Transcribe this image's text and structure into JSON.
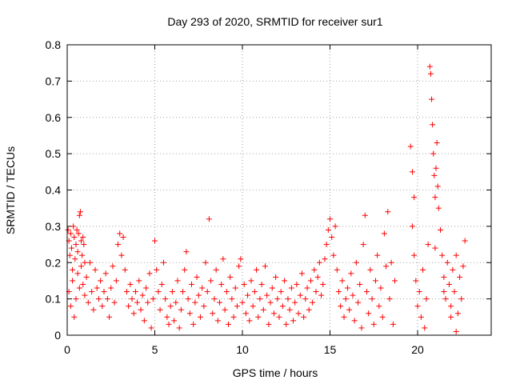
{
  "chart_data": {
    "type": "scatter",
    "title": "Day 293 of 2020, SRMTID for receiver sur1",
    "xlabel": "GPS time / hours",
    "ylabel": "SRMTID / TECUs",
    "xlim": [
      0,
      24.2
    ],
    "ylim": [
      0,
      0.8
    ],
    "xticks": [
      0,
      5,
      10,
      15,
      20
    ],
    "yticks": [
      0,
      0.1,
      0.2,
      0.3,
      0.4,
      0.5,
      0.6,
      0.7,
      0.8
    ],
    "xtick_labels": [
      "0",
      "5",
      "10",
      "15",
      "20"
    ],
    "ytick_labels": [
      "0",
      "0.1",
      "0.2",
      "0.3",
      "0.4",
      "0.5",
      "0.6",
      "0.7",
      "0.8"
    ],
    "grid": true,
    "marker": "+",
    "marker_color": "#ff0000",
    "series": [
      {
        "name": "SRMTID",
        "points": [
          [
            0.05,
            0.29
          ],
          [
            0.1,
            0.26
          ],
          [
            0.15,
            0.22
          ],
          [
            0.2,
            0.28
          ],
          [
            0.25,
            0.24
          ],
          [
            0.3,
            0.18
          ],
          [
            0.35,
            0.3
          ],
          [
            0.4,
            0.27
          ],
          [
            0.45,
            0.21
          ],
          [
            0.5,
            0.25
          ],
          [
            0.55,
            0.29
          ],
          [
            0.6,
            0.23
          ],
          [
            0.65,
            0.28
          ],
          [
            0.7,
            0.33
          ],
          [
            0.75,
            0.34
          ],
          [
            0.8,
            0.26
          ],
          [
            0.85,
            0.22
          ],
          [
            0.9,
            0.27
          ],
          [
            0.95,
            0.25
          ],
          [
            1.0,
            0.2
          ],
          [
            0.1,
            0.12
          ],
          [
            0.2,
            0.08
          ],
          [
            0.3,
            0.15
          ],
          [
            0.4,
            0.05
          ],
          [
            0.5,
            0.1
          ],
          [
            0.6,
            0.17
          ],
          [
            0.7,
            0.13
          ],
          [
            0.8,
            0.19
          ],
          [
            0.9,
            0.14
          ],
          [
            1.0,
            0.11
          ],
          [
            1.1,
            0.16
          ],
          [
            1.2,
            0.09
          ],
          [
            1.3,
            0.2
          ],
          [
            1.4,
            0.12
          ],
          [
            1.5,
            0.07
          ],
          [
            1.6,
            0.18
          ],
          [
            1.7,
            0.13
          ],
          [
            1.8,
            0.1
          ],
          [
            1.9,
            0.15
          ],
          [
            2.0,
            0.08
          ],
          [
            2.1,
            0.12
          ],
          [
            2.2,
            0.17
          ],
          [
            2.3,
            0.1
          ],
          [
            2.4,
            0.05
          ],
          [
            2.5,
            0.13
          ],
          [
            2.6,
            0.19
          ],
          [
            2.7,
            0.09
          ],
          [
            2.8,
            0.15
          ],
          [
            2.9,
            0.25
          ],
          [
            3.0,
            0.28
          ],
          [
            3.1,
            0.22
          ],
          [
            3.2,
            0.27
          ],
          [
            3.3,
            0.18
          ],
          [
            3.4,
            0.12
          ],
          [
            3.5,
            0.08
          ],
          [
            3.6,
            0.14
          ],
          [
            3.7,
            0.1
          ],
          [
            3.8,
            0.06
          ],
          [
            3.9,
            0.12
          ],
          [
            4.0,
            0.09
          ],
          [
            4.1,
            0.15
          ],
          [
            4.2,
            0.07
          ],
          [
            4.3,
            0.11
          ],
          [
            4.4,
            0.04
          ],
          [
            4.5,
            0.13
          ],
          [
            4.6,
            0.09
          ],
          [
            4.7,
            0.17
          ],
          [
            4.8,
            0.02
          ],
          [
            4.9,
            0.1
          ],
          [
            5.0,
            0.26
          ],
          [
            5.1,
            0.18
          ],
          [
            5.2,
            0.12
          ],
          [
            5.3,
            0.07
          ],
          [
            5.4,
            0.14
          ],
          [
            5.5,
            0.2
          ],
          [
            5.6,
            0.1
          ],
          [
            5.7,
            0.05
          ],
          [
            5.8,
            0.03
          ],
          [
            5.9,
            0.08
          ],
          [
            6.0,
            0.12
          ],
          [
            6.1,
            0.04
          ],
          [
            6.2,
            0.09
          ],
          [
            6.3,
            0.15
          ],
          [
            6.4,
            0.02
          ],
          [
            6.5,
            0.07
          ],
          [
            6.6,
            0.12
          ],
          [
            6.7,
            0.18
          ],
          [
            6.8,
            0.23
          ],
          [
            6.9,
            0.1
          ],
          [
            7.0,
            0.06
          ],
          [
            7.1,
            0.14
          ],
          [
            7.2,
            0.03
          ],
          [
            7.3,
            0.09
          ],
          [
            7.4,
            0.16
          ],
          [
            7.5,
            0.11
          ],
          [
            7.6,
            0.05
          ],
          [
            7.7,
            0.13
          ],
          [
            7.8,
            0.08
          ],
          [
            7.9,
            0.2
          ],
          [
            8.0,
            0.12
          ],
          [
            8.1,
            0.32
          ],
          [
            8.2,
            0.15
          ],
          [
            8.3,
            0.06
          ],
          [
            8.4,
            0.1
          ],
          [
            8.5,
            0.18
          ],
          [
            8.6,
            0.04
          ],
          [
            8.7,
            0.09
          ],
          [
            8.8,
            0.14
          ],
          [
            8.9,
            0.21
          ],
          [
            9.0,
            0.07
          ],
          [
            9.1,
            0.12
          ],
          [
            9.2,
            0.03
          ],
          [
            9.3,
            0.16
          ],
          [
            9.4,
            0.1
          ],
          [
            9.5,
            0.05
          ],
          [
            9.6,
            0.13
          ],
          [
            9.7,
            0.08
          ],
          [
            9.8,
            0.19
          ],
          [
            9.9,
            0.21
          ],
          [
            10.0,
            0.09
          ],
          [
            10.1,
            0.14
          ],
          [
            10.2,
            0.06
          ],
          [
            10.3,
            0.11
          ],
          [
            10.4,
            0.04
          ],
          [
            10.5,
            0.15
          ],
          [
            10.6,
            0.08
          ],
          [
            10.7,
            0.12
          ],
          [
            10.8,
            0.18
          ],
          [
            10.9,
            0.05
          ],
          [
            11.0,
            0.1
          ],
          [
            11.1,
            0.14
          ],
          [
            11.2,
            0.07
          ],
          [
            11.3,
            0.19
          ],
          [
            11.4,
            0.11
          ],
          [
            11.5,
            0.03
          ],
          [
            11.6,
            0.09
          ],
          [
            11.7,
            0.13
          ],
          [
            11.8,
            0.06
          ],
          [
            11.9,
            0.16
          ],
          [
            12.0,
            0.1
          ],
          [
            12.1,
            0.05
          ],
          [
            12.2,
            0.12
          ],
          [
            12.3,
            0.08
          ],
          [
            12.4,
            0.15
          ],
          [
            12.5,
            0.03
          ],
          [
            12.6,
            0.1
          ],
          [
            12.7,
            0.07
          ],
          [
            12.8,
            0.13
          ],
          [
            12.9,
            0.04
          ],
          [
            13.0,
            0.09
          ],
          [
            13.1,
            0.14
          ],
          [
            13.2,
            0.06
          ],
          [
            13.3,
            0.11
          ],
          [
            13.4,
            0.17
          ],
          [
            13.5,
            0.05
          ],
          [
            13.6,
            0.1
          ],
          [
            13.7,
            0.13
          ],
          [
            13.8,
            0.07
          ],
          [
            13.9,
            0.15
          ],
          [
            14.0,
            0.09
          ],
          [
            14.1,
            0.18
          ],
          [
            14.2,
            0.12
          ],
          [
            14.3,
            0.16
          ],
          [
            14.4,
            0.2
          ],
          [
            14.5,
            0.11
          ],
          [
            14.6,
            0.14
          ],
          [
            14.7,
            0.21
          ],
          [
            14.8,
            0.25
          ],
          [
            14.9,
            0.29
          ],
          [
            15.0,
            0.32
          ],
          [
            15.1,
            0.27
          ],
          [
            15.2,
            0.22
          ],
          [
            15.3,
            0.3
          ],
          [
            15.4,
            0.18
          ],
          [
            15.5,
            0.12
          ],
          [
            15.6,
            0.08
          ],
          [
            15.7,
            0.15
          ],
          [
            15.8,
            0.05
          ],
          [
            15.9,
            0.1
          ],
          [
            16.0,
            0.13
          ],
          [
            16.1,
            0.07
          ],
          [
            16.2,
            0.17
          ],
          [
            16.3,
            0.11
          ],
          [
            16.4,
            0.04
          ],
          [
            16.5,
            0.2
          ],
          [
            16.6,
            0.09
          ],
          [
            16.7,
            0.14
          ],
          [
            16.8,
            0.02
          ],
          [
            16.9,
            0.25
          ],
          [
            17.0,
            0.33
          ],
          [
            17.1,
            0.12
          ],
          [
            17.2,
            0.06
          ],
          [
            17.3,
            0.18
          ],
          [
            17.4,
            0.1
          ],
          [
            17.5,
            0.03
          ],
          [
            17.6,
            0.15
          ],
          [
            17.7,
            0.22
          ],
          [
            17.8,
            0.08
          ],
          [
            17.9,
            0.13
          ],
          [
            18.0,
            0.05
          ],
          [
            18.1,
            0.28
          ],
          [
            18.2,
            0.19
          ],
          [
            18.3,
            0.34
          ],
          [
            18.4,
            0.1
          ],
          [
            18.5,
            0.2
          ],
          [
            18.6,
            0.03
          ],
          [
            18.7,
            0.15
          ],
          [
            19.6,
            0.52
          ],
          [
            19.7,
            0.45
          ],
          [
            19.8,
            0.38
          ],
          [
            19.7,
            0.3
          ],
          [
            19.8,
            0.22
          ],
          [
            19.9,
            0.15
          ],
          [
            20.0,
            0.08
          ],
          [
            20.1,
            0.12
          ],
          [
            20.2,
            0.05
          ],
          [
            20.3,
            0.18
          ],
          [
            20.4,
            0.02
          ],
          [
            20.5,
            0.1
          ],
          [
            20.6,
            0.25
          ],
          [
            20.7,
            0.74
          ],
          [
            20.75,
            0.72
          ],
          [
            20.8,
            0.65
          ],
          [
            20.85,
            0.58
          ],
          [
            20.9,
            0.5
          ],
          [
            20.95,
            0.44
          ],
          [
            21.0,
            0.38
          ],
          [
            21.05,
            0.46
          ],
          [
            21.1,
            0.53
          ],
          [
            21.15,
            0.41
          ],
          [
            21.2,
            0.35
          ],
          [
            21.3,
            0.29
          ],
          [
            21.4,
            0.22
          ],
          [
            21.5,
            0.16
          ],
          [
            21.6,
            0.1
          ],
          [
            21.7,
            0.2
          ],
          [
            21.8,
            0.14
          ],
          [
            21.9,
            0.08
          ],
          [
            22.0,
            0.18
          ],
          [
            22.1,
            0.12
          ],
          [
            22.2,
            0.22
          ],
          [
            22.3,
            0.06
          ],
          [
            22.4,
            0.16
          ],
          [
            22.5,
            0.1
          ],
          [
            22.6,
            0.19
          ],
          [
            22.7,
            0.26
          ],
          [
            22.2,
            0.01
          ],
          [
            21.9,
            0.05
          ],
          [
            21.5,
            0.12
          ],
          [
            21.0,
            0.24
          ]
        ]
      }
    ]
  }
}
